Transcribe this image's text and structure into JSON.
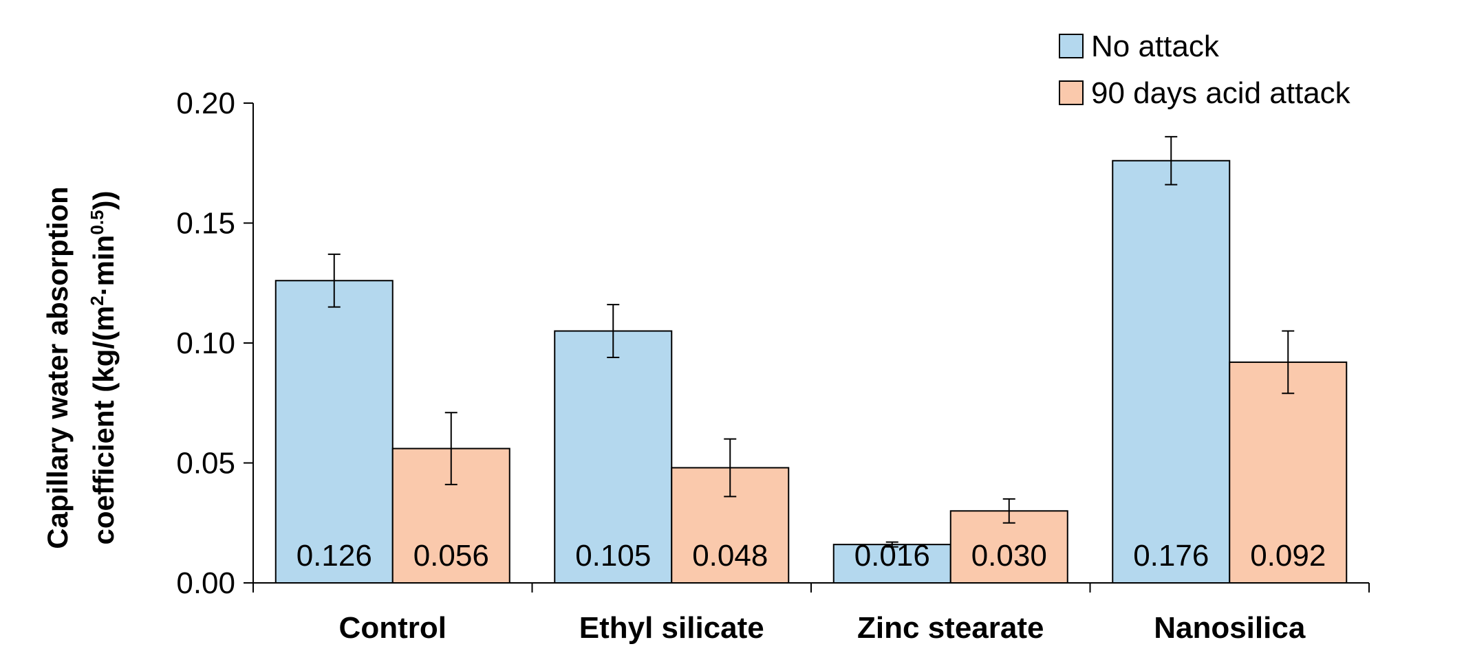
{
  "chart_data": {
    "type": "bar",
    "title": "",
    "xlabel": "",
    "ylabel_line1": "Capillary water absorption",
    "ylabel_line2_prefix": "coefficient  (kg/(m",
    "ylabel_sup1": "2",
    "ylabel_mid": "·min",
    "ylabel_sup2": "0.5",
    "ylabel_suffix": "))",
    "ylim": [
      0,
      0.2
    ],
    "yticks": [
      "0.00",
      "0.05",
      "0.10",
      "0.15",
      "0.20"
    ],
    "ytick_values": [
      0,
      0.05,
      0.1,
      0.15,
      0.2
    ],
    "categories": [
      "Control",
      "Ethyl silicate",
      "Zinc stearate",
      "Nanosilica"
    ],
    "series": [
      {
        "name": "No attack",
        "color": "#B4D8EE",
        "values": [
          0.126,
          0.105,
          0.016,
          0.176
        ],
        "labels": [
          "0.126",
          "0.105",
          "0.016",
          "0.176"
        ],
        "errors": [
          0.011,
          0.011,
          0.001,
          0.01
        ]
      },
      {
        "name": "90 days acid attack",
        "color": "#FAC9AC",
        "values": [
          0.056,
          0.048,
          0.03,
          0.092
        ],
        "labels": [
          "0.056",
          "0.048",
          "0.030",
          "0.092"
        ],
        "errors": [
          0.015,
          0.012,
          0.005,
          0.013
        ]
      }
    ],
    "legend_position": "top-right"
  }
}
